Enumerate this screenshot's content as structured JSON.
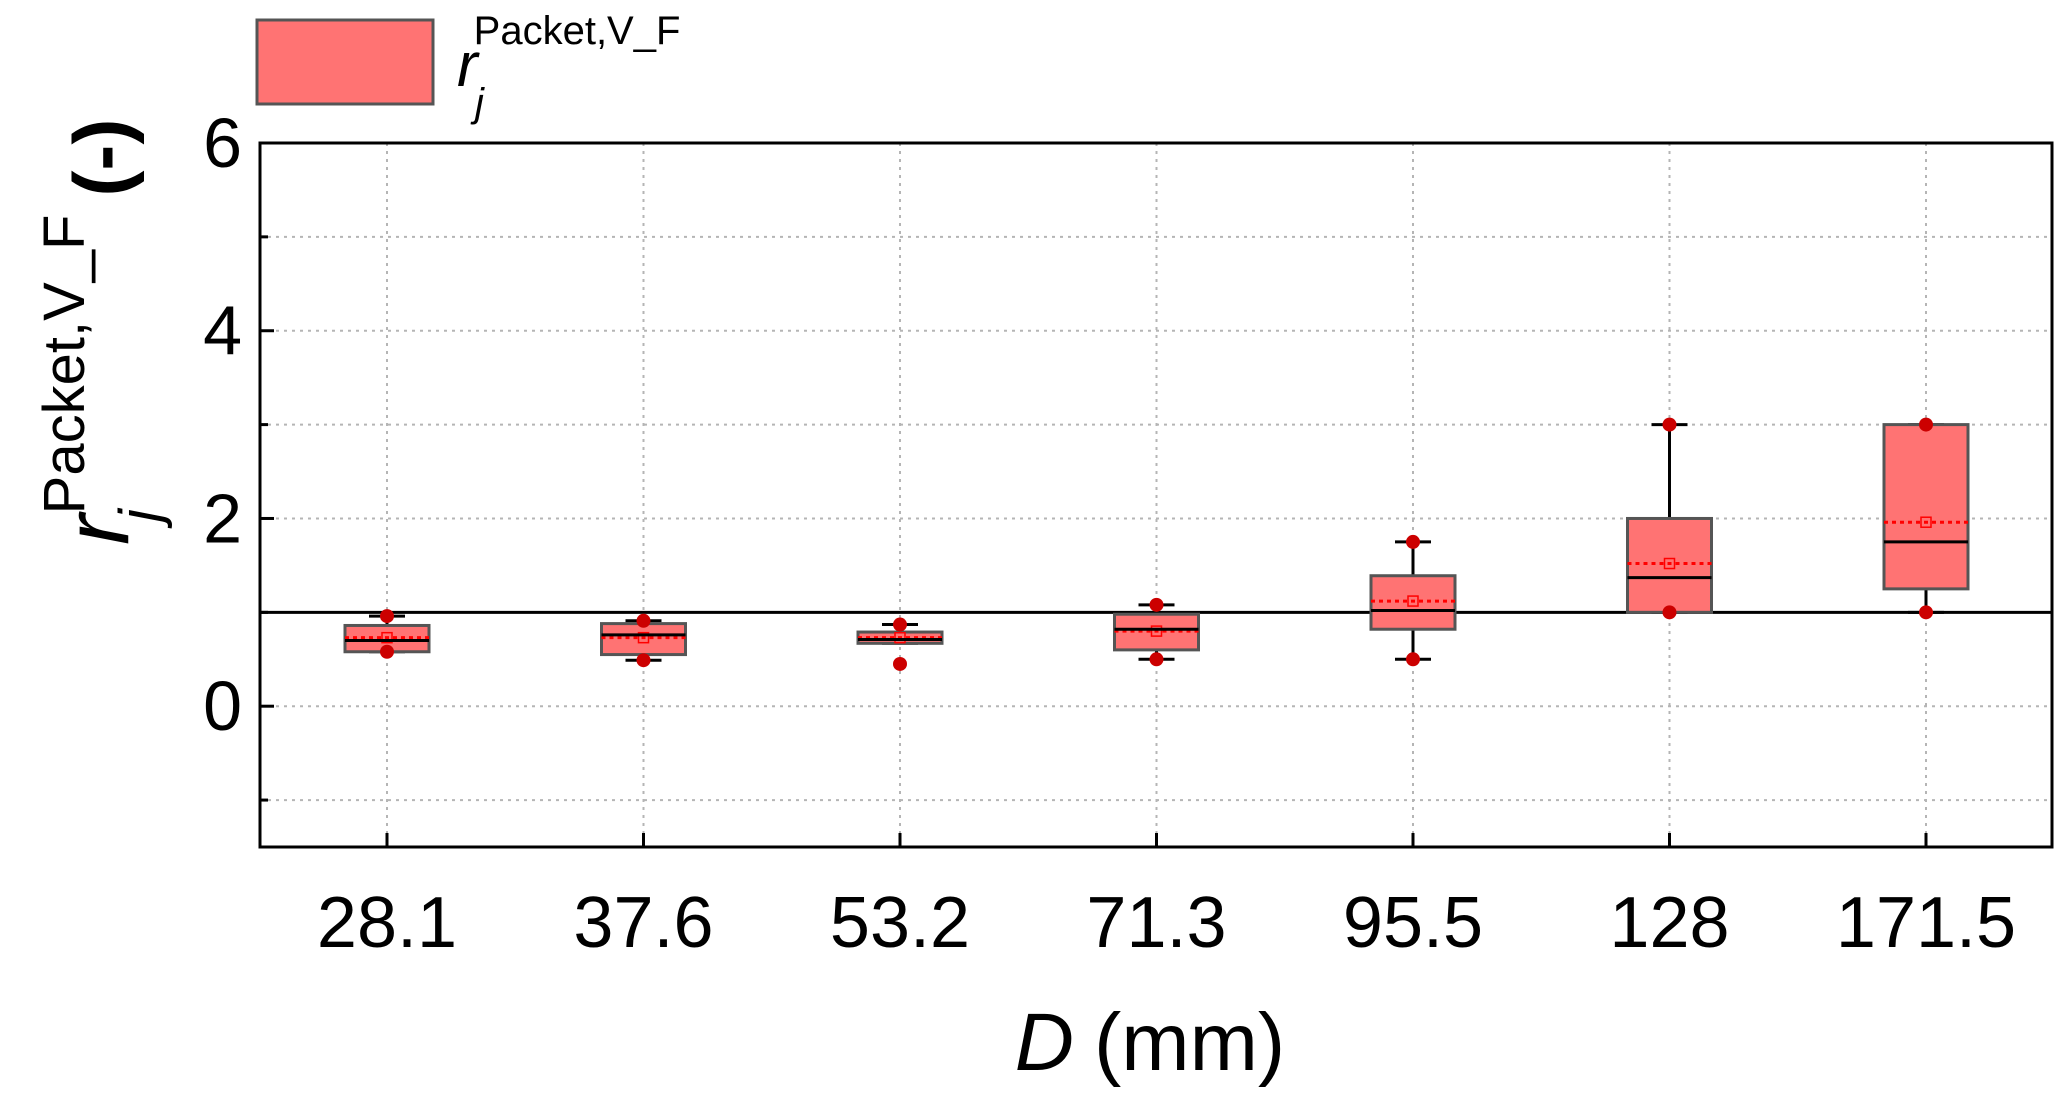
{
  "chart_data": {
    "type": "box",
    "categories": [
      "28.1",
      "37.6",
      "53.2",
      "71.3",
      "95.5",
      "128",
      "171.5"
    ],
    "xlabel": {
      "var": "D",
      "unit": "(mm)"
    },
    "ylabel": {
      "base": "r",
      "sub": "j",
      "sup": "Packet,V_F",
      "unit": "(-)"
    },
    "ylim": [
      -1.5,
      6
    ],
    "yticks": [
      "0",
      "2",
      "4",
      "6"
    ],
    "grid": true,
    "reference_line_y": 1,
    "legend": {
      "position": "top-left",
      "base": "r",
      "sub": "j",
      "sup": "Packet,V_F"
    },
    "series": [
      {
        "boxes": [
          {
            "category": "28.1",
            "whisker_low": 0.58,
            "q1": 0.58,
            "median": 0.7,
            "mean": 0.73,
            "q3": 0.86,
            "whisker_high": 0.96,
            "points": [
              0.58,
              0.96
            ]
          },
          {
            "category": "37.6",
            "whisker_low": 0.49,
            "q1": 0.55,
            "median": 0.76,
            "mean": 0.73,
            "q3": 0.88,
            "whisker_high": 0.91,
            "points": [
              0.49,
              0.91
            ]
          },
          {
            "category": "53.2",
            "whisker_low": 0.67,
            "q1": 0.67,
            "median": 0.71,
            "mean": 0.73,
            "q3": 0.79,
            "whisker_high": 0.87,
            "points": [
              0.45,
              0.87
            ]
          },
          {
            "category": "71.3",
            "whisker_low": 0.5,
            "q1": 0.6,
            "median": 0.82,
            "mean": 0.8,
            "q3": 0.98,
            "whisker_high": 1.08,
            "points": [
              0.5,
              1.08
            ]
          },
          {
            "category": "95.5",
            "whisker_low": 0.5,
            "q1": 0.82,
            "median": 1.02,
            "mean": 1.12,
            "q3": 1.39,
            "whisker_high": 1.75,
            "points": [
              0.5,
              1.75
            ]
          },
          {
            "category": "128",
            "whisker_low": 1.0,
            "q1": 1.0,
            "median": 1.37,
            "mean": 1.52,
            "q3": 2.0,
            "whisker_high": 3.0,
            "points": [
              1.0,
              3.0
            ]
          },
          {
            "category": "171.5",
            "whisker_low": 1.0,
            "q1": 1.25,
            "median": 1.75,
            "mean": 1.96,
            "q3": 3.0,
            "whisker_high": 3.0,
            "points": [
              1.0,
              3.0
            ]
          }
        ]
      }
    ],
    "colors": {
      "box_fill": "#ff7373",
      "box_stroke": "#555555",
      "point": "#cc0000",
      "mean_line": "#ff0000",
      "median_line": "#000000",
      "grid": "#b5b5b5"
    }
  }
}
